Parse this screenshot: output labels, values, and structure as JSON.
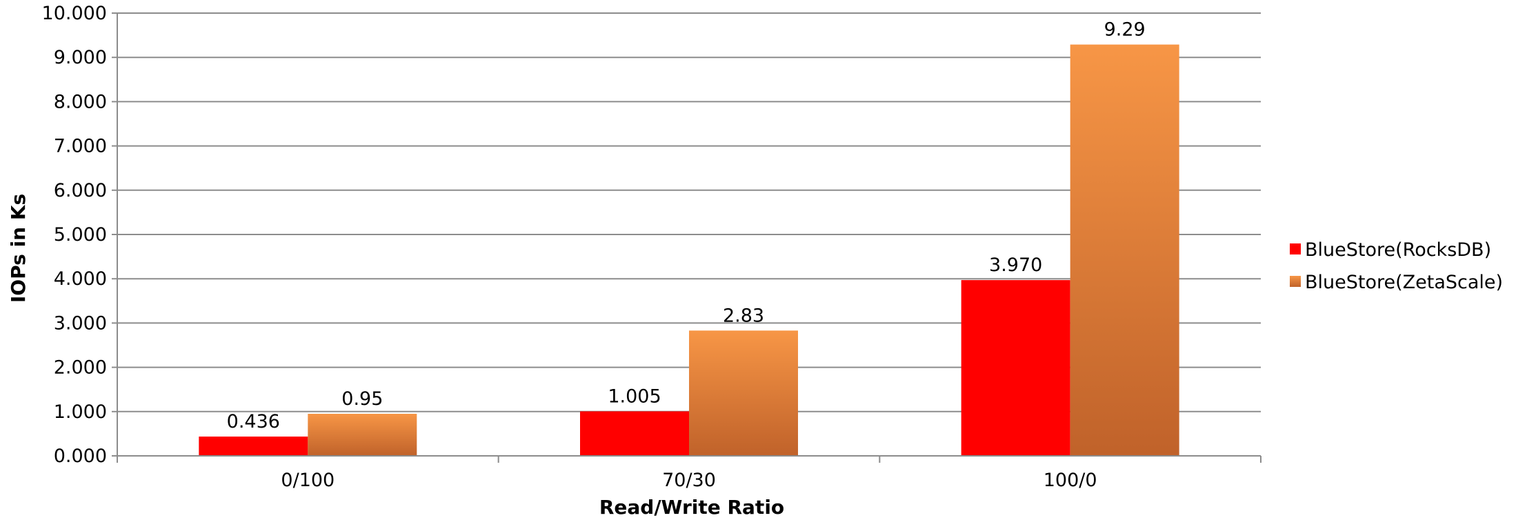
{
  "chart_data": {
    "type": "bar",
    "categories": [
      "0/100",
      "70/30",
      "100/0"
    ],
    "series": [
      {
        "name": "BlueStore(RocksDB)",
        "values": [
          0.436,
          1.005,
          3.97
        ],
        "labels": [
          "0.436",
          "1.005",
          "3.970"
        ],
        "color": "#FF0000"
      },
      {
        "name": "BlueStore(ZetaScale)",
        "values": [
          0.95,
          2.83,
          9.29
        ],
        "labels": [
          "0.95",
          "2.83",
          "9.29"
        ],
        "color": "#F79646",
        "color_dark": "#C0622A"
      }
    ],
    "xlabel": "Read/Write Ratio",
    "ylabel": "IOPs in Ks",
    "ylim": [
      0,
      10
    ],
    "yticks": [
      "0.000",
      "1.000",
      "2.000",
      "3.000",
      "4.000",
      "5.000",
      "6.000",
      "7.000",
      "8.000",
      "9.000",
      "10.000"
    ],
    "grid": true,
    "legend_position": "right"
  }
}
